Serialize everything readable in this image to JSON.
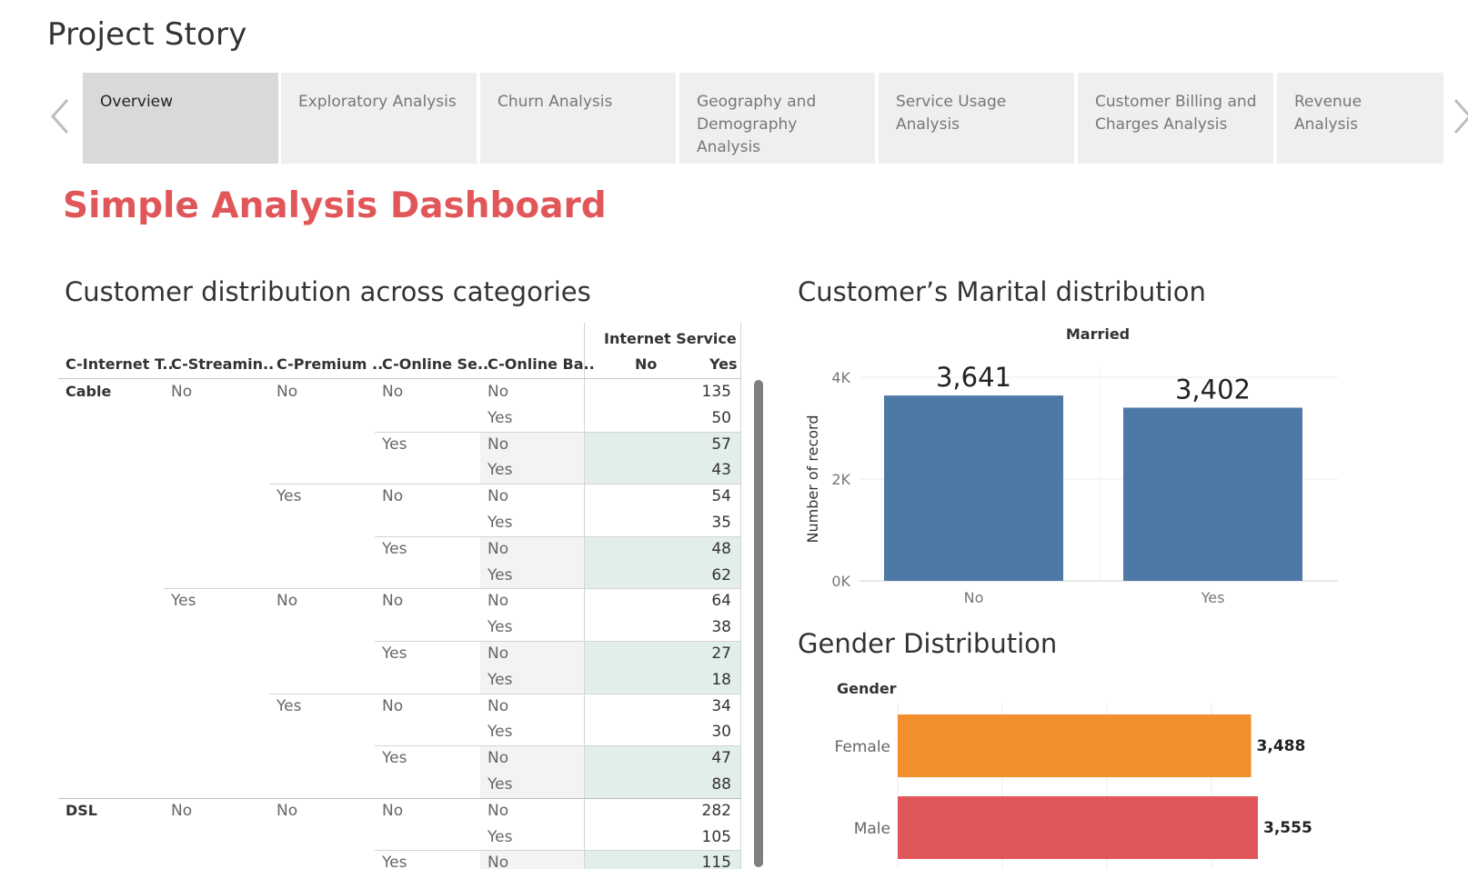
{
  "story": {
    "title": "Project Story",
    "tabs": [
      {
        "label": "Overview",
        "active": true
      },
      {
        "label": "Exploratory Analysis",
        "active": false
      },
      {
        "label": "Churn Analysis",
        "active": false
      },
      {
        "label": "Geography and Demography Analysis",
        "active": false
      },
      {
        "label": "Service Usage Analysis",
        "active": false
      },
      {
        "label": "Customer Billing and Charges Analysis",
        "active": false
      },
      {
        "label": "Revenue Analysis",
        "active": false
      }
    ],
    "prev_icon": "chevron-left-icon",
    "next_icon": "chevron-right-icon"
  },
  "dashboard": {
    "title": "Simple Analysis Dashboard",
    "crosstab_title": "Customer distribution across categories",
    "marital_title": "Customer’s Marital distribution",
    "gender_title": "Gender Distribution"
  },
  "crosstab": {
    "columns": [
      "C-Internet T..",
      "C-Streamin..",
      "C-Premium ..",
      "C-Online Se..",
      "C-Online Ba.."
    ],
    "measure_header": "Internet Service",
    "measure_columns": [
      "No",
      "Yes"
    ],
    "rows": [
      {
        "c0": "Cable",
        "c1": "No",
        "c2": "No",
        "c3": "No",
        "c4": "No",
        "value": "135"
      },
      {
        "c0": "",
        "c1": "",
        "c2": "",
        "c3": "",
        "c4": "Yes",
        "value": "50"
      },
      {
        "c0": "",
        "c1": "",
        "c2": "",
        "c3": "Yes",
        "c4": "No",
        "value": "57"
      },
      {
        "c0": "",
        "c1": "",
        "c2": "",
        "c3": "",
        "c4": "Yes",
        "value": "43"
      },
      {
        "c0": "",
        "c1": "",
        "c2": "Yes",
        "c3": "No",
        "c4": "No",
        "value": "54"
      },
      {
        "c0": "",
        "c1": "",
        "c2": "",
        "c3": "",
        "c4": "Yes",
        "value": "35"
      },
      {
        "c0": "",
        "c1": "",
        "c2": "",
        "c3": "Yes",
        "c4": "No",
        "value": "48"
      },
      {
        "c0": "",
        "c1": "",
        "c2": "",
        "c3": "",
        "c4": "Yes",
        "value": "62"
      },
      {
        "c0": "",
        "c1": "Yes",
        "c2": "No",
        "c3": "No",
        "c4": "No",
        "value": "64"
      },
      {
        "c0": "",
        "c1": "",
        "c2": "",
        "c3": "",
        "c4": "Yes",
        "value": "38"
      },
      {
        "c0": "",
        "c1": "",
        "c2": "",
        "c3": "Yes",
        "c4": "No",
        "value": "27"
      },
      {
        "c0": "",
        "c1": "",
        "c2": "",
        "c3": "",
        "c4": "Yes",
        "value": "18"
      },
      {
        "c0": "",
        "c1": "",
        "c2": "Yes",
        "c3": "No",
        "c4": "No",
        "value": "34"
      },
      {
        "c0": "",
        "c1": "",
        "c2": "",
        "c3": "",
        "c4": "Yes",
        "value": "30"
      },
      {
        "c0": "",
        "c1": "",
        "c2": "",
        "c3": "Yes",
        "c4": "No",
        "value": "47"
      },
      {
        "c0": "",
        "c1": "",
        "c2": "",
        "c3": "",
        "c4": "Yes",
        "value": "88"
      },
      {
        "c0": "DSL",
        "c1": "No",
        "c2": "No",
        "c3": "No",
        "c4": "No",
        "value": "282"
      },
      {
        "c0": "",
        "c1": "",
        "c2": "",
        "c3": "",
        "c4": "Yes",
        "value": "105"
      },
      {
        "c0": "",
        "c1": "",
        "c2": "",
        "c3": "Yes",
        "c4": "No",
        "value": "115"
      }
    ]
  },
  "chart_data": [
    {
      "type": "bar",
      "title": "Customer’s Marital distribution",
      "header": "Married",
      "categories": [
        "No",
        "Yes"
      ],
      "values": [
        3641,
        3402
      ],
      "value_labels": [
        "3,641",
        "3,402"
      ],
      "ylabel": "Number of record",
      "yticks": [
        "0K",
        "2K",
        "4K"
      ],
      "ytick_values": [
        0,
        2000,
        4000
      ],
      "ylim": [
        0,
        4000
      ],
      "color": "#4e79a7",
      "grid": true
    },
    {
      "type": "bar",
      "orientation": "horizontal",
      "title": "Gender Distribution",
      "header": "Gender",
      "categories": [
        "Female",
        "Male"
      ],
      "values": [
        3488,
        3555
      ],
      "value_labels": [
        "3,488",
        "3,555"
      ],
      "colors": [
        "#f28e2b",
        "#e15759"
      ],
      "grid": true
    }
  ],
  "colors": {
    "accent_title": "#e15759",
    "tab_active": "#d9d9d9",
    "tab_inactive": "#efefef",
    "band_fill": "#e1eeea",
    "band_label_fill": "#f3f3f3"
  }
}
